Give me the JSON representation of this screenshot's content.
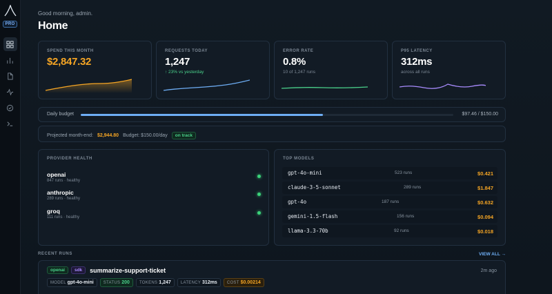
{
  "app": {
    "badge": "PRO"
  },
  "rail": {
    "items": [
      "grid-icon",
      "bar-chart-icon",
      "document-icon",
      "activity-icon",
      "check-circle-icon",
      "terminal-icon"
    ]
  },
  "header": {
    "greeting": "Good morning, admin.",
    "title": "Home"
  },
  "stats": [
    {
      "label": "SPEND THIS MONTH",
      "value": "$2,847.32",
      "sub": "",
      "color": "#f5a524"
    },
    {
      "label": "REQUESTS TODAY",
      "value": "1,247",
      "sub": "↑ 23% vs yesterday",
      "color": "#6eaef5"
    },
    {
      "label": "ERROR RATE",
      "value": "0.8%",
      "sub": "10 of 1,247 runs",
      "color": "#4ad18b"
    },
    {
      "label": "P95 LATENCY",
      "value": "312ms",
      "sub": "across all runs",
      "color": "#a98cff"
    }
  ],
  "budget": {
    "label": "Daily budget",
    "amount": "$97.46 / $150.00",
    "fraction": 0.65
  },
  "projection": {
    "label": "Projected month-end:",
    "amount": "$2,944.80",
    "budget": "Budget: $150.00/day",
    "status": "on track"
  },
  "provider_health": {
    "title": "PROVIDER HEALTH",
    "items": [
      {
        "name": "openai",
        "detail": "847 runs · healthy"
      },
      {
        "name": "anthropic",
        "detail": "289 runs · healthy"
      },
      {
        "name": "groq",
        "detail": "111 runs · healthy"
      }
    ]
  },
  "top_models": {
    "title": "TOP MODELS",
    "items": [
      {
        "name": "gpt-4o-mini",
        "runs": "523 runs",
        "cost": "$0.421"
      },
      {
        "name": "claude-3-5-sonnet",
        "runs": "289 runs",
        "cost": "$1.847"
      },
      {
        "name": "gpt-4o",
        "runs": "187 runs",
        "cost": "$0.632"
      },
      {
        "name": "gemini-1.5-flash",
        "runs": "156 runs",
        "cost": "$0.094"
      },
      {
        "name": "llama-3.3-70b",
        "runs": "92 runs",
        "cost": "$0.018"
      }
    ]
  },
  "recent_runs": {
    "title": "RECENT RUNS",
    "view_all": "VIEW ALL →",
    "run": {
      "tags": [
        "openai",
        "sdk"
      ],
      "name": "summarize-support-ticket",
      "time": "2m ago",
      "chips": [
        {
          "k": "MODEL",
          "v": "gpt-4o-mini"
        },
        {
          "k": "STATUS",
          "v": "200"
        },
        {
          "k": "TOKENS",
          "v": "1,247"
        },
        {
          "k": "LATENCY",
          "v": "312ms"
        },
        {
          "k": "COST",
          "v": "$0.00214"
        }
      ]
    }
  }
}
